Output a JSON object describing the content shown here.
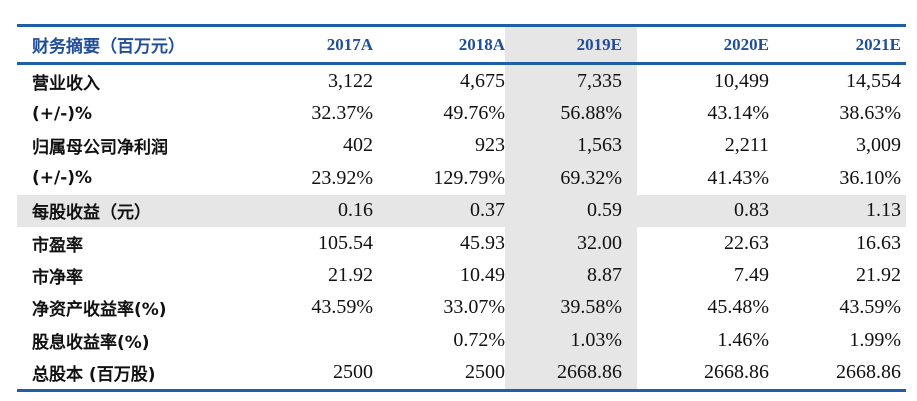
{
  "table": {
    "header": {
      "label": "财务摘要（百万元）",
      "years": [
        "2017A",
        "2018A",
        "2019E",
        "2020E",
        "2021E"
      ]
    },
    "rows": [
      {
        "label": "营业收入",
        "values": [
          "3,122",
          "4,675",
          "7,335",
          "10,499",
          "14,554"
        ]
      },
      {
        "label": "(+/-)%",
        "values": [
          "32.37%",
          "49.76%",
          "56.88%",
          "43.14%",
          "38.63%"
        ]
      },
      {
        "label": "归属母公司净利润",
        "values": [
          "402",
          "923",
          "1,563",
          "2,211",
          "3,009"
        ]
      },
      {
        "label": "(+/-)%",
        "values": [
          "23.92%",
          "129.79%",
          "69.32%",
          "41.43%",
          "36.10%"
        ]
      },
      {
        "label": "每股收益（元）",
        "values": [
          "0.16",
          "0.37",
          "0.59",
          "0.83",
          "1.13"
        ],
        "highlight": true
      },
      {
        "label": "市盈率",
        "values": [
          "105.54",
          "45.93",
          "32.00",
          "22.63",
          "16.63"
        ]
      },
      {
        "label": "市净率",
        "values": [
          "21.92",
          "10.49",
          "8.87",
          "7.49",
          "21.92"
        ]
      },
      {
        "label": "净资产收益率(%)",
        "values": [
          "43.59%",
          "33.07%",
          "39.58%",
          "45.48%",
          "43.59%"
        ]
      },
      {
        "label": "股息收益率(%)",
        "values": [
          "",
          "0.72%",
          "1.03%",
          "1.46%",
          "1.99%"
        ]
      },
      {
        "label": "总股本 (百万股)",
        "values": [
          "2500",
          "2500",
          "2668.86",
          "2668.86",
          "2668.86"
        ]
      }
    ]
  },
  "colors": {
    "rule": "#1f5fa8",
    "header_text": "#1f4e9a",
    "shade": "#e6e6e6"
  }
}
